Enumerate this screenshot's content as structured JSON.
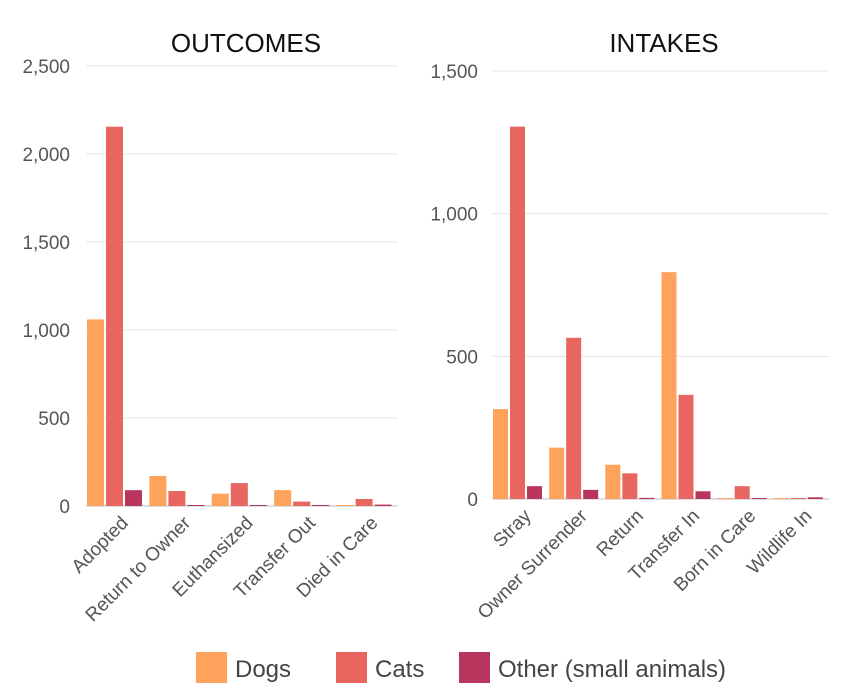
{
  "chart_data": [
    {
      "type": "bar",
      "title": "OUTCOMES",
      "categories": [
        "Adopted",
        "Return to Owner",
        "Euthansized",
        "Transfer Out",
        "Died in Care"
      ],
      "series": [
        {
          "name": "Dogs",
          "values": [
            1060,
            170,
            70,
            90,
            5
          ]
        },
        {
          "name": "Cats",
          "values": [
            2155,
            85,
            130,
            25,
            40
          ]
        },
        {
          "name": "Other (small animals)",
          "values": [
            90,
            3,
            3,
            3,
            8
          ]
        }
      ],
      "ylim": [
        0,
        2500
      ],
      "yticks": [
        0,
        500,
        1000,
        1500,
        2000,
        2500
      ],
      "ytick_labels": [
        "0",
        "500",
        "1,000",
        "1,500",
        "2,000",
        "2,500"
      ],
      "xlabel": "",
      "ylabel": "",
      "grid": true
    },
    {
      "type": "bar",
      "title": "INTAKES",
      "categories": [
        "Stray",
        "Owner Surrender",
        "Return",
        "Transfer In",
        "Born in Care",
        "Wildlife In"
      ],
      "series": [
        {
          "name": "Dogs",
          "values": [
            315,
            180,
            120,
            795,
            3,
            2
          ]
        },
        {
          "name": "Cats",
          "values": [
            1305,
            565,
            90,
            365,
            45,
            2
          ]
        },
        {
          "name": "Other (small animals)",
          "values": [
            45,
            32,
            4,
            27,
            2,
            6
          ]
        }
      ],
      "ylim": [
        0,
        1500
      ],
      "yticks": [
        0,
        500,
        1000,
        1500
      ],
      "ytick_labels": [
        "0",
        "500",
        "1,000",
        "1,500"
      ],
      "xlabel": "",
      "ylabel": "",
      "grid": true
    }
  ],
  "legend": {
    "placement": "bottom",
    "items": [
      {
        "label": "Dogs",
        "color": "#ffa25c"
      },
      {
        "label": "Cats",
        "color": "#e8665f"
      },
      {
        "label": "Other (small animals)",
        "color": "#b8365e"
      }
    ]
  }
}
